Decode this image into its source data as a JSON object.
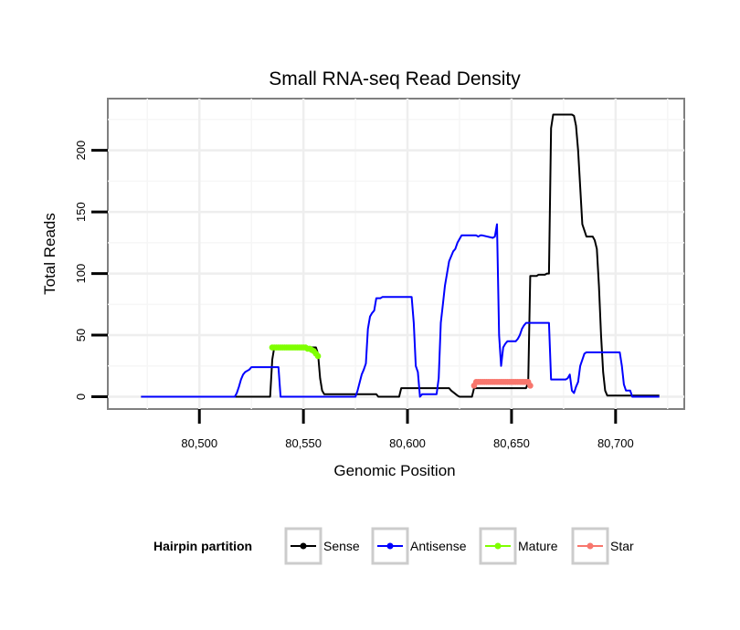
{
  "chart_data": {
    "type": "line",
    "title": "Small RNA-seq Read Density",
    "xlabel": "Genomic Position",
    "ylabel": "Total Reads",
    "xlim": [
      80456,
      80733
    ],
    "ylim": [
      -10,
      242
    ],
    "x_ticks": [
      80500,
      80550,
      80600,
      80650,
      80700
    ],
    "x_tick_labels": [
      "80,500",
      "80,550",
      "80,600",
      "80,650",
      "80,700"
    ],
    "y_ticks": [
      0,
      50,
      100,
      150,
      200
    ],
    "y_tick_labels": [
      "0",
      "50",
      "100",
      "150",
      "200"
    ],
    "grid": true,
    "legend": {
      "title": "Hairpin partition",
      "position": "bottom",
      "entries": [
        {
          "name": "Sense",
          "color": "#000000"
        },
        {
          "name": "Antisense",
          "color": "#0000ff"
        },
        {
          "name": "Mature",
          "color": "#7fff00"
        },
        {
          "name": "Star",
          "color": "#f8766d"
        }
      ]
    },
    "series": [
      {
        "name": "Sense",
        "color": "#000000",
        "style": "line",
        "x": [
          80472,
          80534,
          80535,
          80536,
          80556,
          80557,
          80558,
          80559,
          80560,
          80585,
          80586,
          80589,
          80590,
          80596,
          80597,
          80620,
          80621,
          80624,
          80625,
          80631,
          80632,
          80657,
          80658,
          80659,
          80662,
          80663,
          80666,
          80667,
          80668,
          80669,
          80670,
          80671,
          80679,
          80680,
          80681,
          80682,
          80683,
          80684,
          80685,
          80686,
          80689,
          80690,
          80691,
          80692,
          80693,
          80694,
          80695,
          80696,
          80721
        ],
        "y": [
          0,
          0,
          30,
          40,
          40,
          35,
          15,
          5,
          2,
          2,
          0,
          0,
          0,
          0,
          7,
          7,
          5,
          1,
          0,
          0,
          7,
          7,
          12,
          98,
          98,
          99,
          99,
          100,
          100,
          218,
          229,
          229,
          229,
          228,
          220,
          200,
          170,
          140,
          135,
          130,
          130,
          127,
          120,
          90,
          50,
          20,
          5,
          1,
          1
        ]
      },
      {
        "name": "Antisense",
        "color": "#0000ff",
        "style": "line",
        "x": [
          80472,
          80517,
          80518,
          80519,
          80520,
          80521,
          80522,
          80524,
          80525,
          80526,
          80538,
          80539,
          80575,
          80576,
          80578,
          80579,
          80580,
          80581,
          80582,
          80583,
          80584,
          80585,
          80587,
          80588,
          80602,
          80603,
          80604,
          80605,
          80606,
          80607,
          80614,
          80615,
          80616,
          80617,
          80618,
          80619,
          80620,
          80622,
          80623,
          80624,
          80625,
          80626,
          80633,
          80634,
          80635,
          80636,
          80641,
          80642,
          80643,
          80644,
          80645,
          80646,
          80647,
          80648,
          80652,
          80653,
          80654,
          80655,
          80656,
          80657,
          80668,
          80669,
          80676,
          80677,
          80678,
          80679,
          80680,
          80681,
          80682,
          80683,
          80685,
          80686,
          80702,
          80703,
          80704,
          80705,
          80707,
          80708,
          80709,
          80721
        ],
        "y": [
          0,
          0,
          3,
          8,
          14,
          18,
          20,
          22,
          24,
          24,
          24,
          0,
          0,
          5,
          18,
          22,
          27,
          55,
          65,
          68,
          70,
          80,
          80,
          81,
          81,
          60,
          25,
          20,
          0,
          2,
          2,
          15,
          60,
          75,
          90,
          100,
          110,
          118,
          120,
          125,
          128,
          131,
          131,
          130,
          131,
          131,
          129,
          130,
          140,
          50,
          25,
          40,
          43,
          45,
          45,
          47,
          50,
          55,
          58,
          60,
          60,
          14,
          14,
          15,
          18,
          5,
          3,
          8,
          12,
          25,
          35,
          36,
          36,
          25,
          10,
          5,
          5,
          0,
          0,
          0
        ]
      },
      {
        "name": "Mature",
        "color": "#7fff00",
        "style": "dotted",
        "x": [
          80535,
          80536,
          80537,
          80538,
          80539,
          80540,
          80541,
          80542,
          80543,
          80544,
          80545,
          80546,
          80547,
          80548,
          80549,
          80550,
          80551,
          80552,
          80553,
          80554,
          80555,
          80556,
          80557
        ],
        "y": [
          40,
          40,
          40,
          40,
          40,
          40,
          40,
          40,
          40,
          40,
          40,
          40,
          40,
          40,
          40,
          40,
          40,
          39,
          39,
          38,
          37,
          35,
          33
        ]
      },
      {
        "name": "Star",
        "color": "#f8766d",
        "style": "dotted",
        "x": [
          80632,
          80633,
          80634,
          80635,
          80636,
          80637,
          80638,
          80639,
          80640,
          80641,
          80642,
          80643,
          80644,
          80645,
          80646,
          80647,
          80648,
          80649,
          80650,
          80651,
          80652,
          80653,
          80654,
          80655,
          80656,
          80657,
          80658,
          80659
        ],
        "y": [
          9,
          12,
          12,
          12,
          12,
          12,
          12,
          12,
          12,
          12,
          12,
          12,
          12,
          12,
          12,
          12,
          12,
          12,
          12,
          12,
          12,
          12,
          12,
          12,
          12,
          12,
          12,
          9
        ]
      }
    ]
  }
}
